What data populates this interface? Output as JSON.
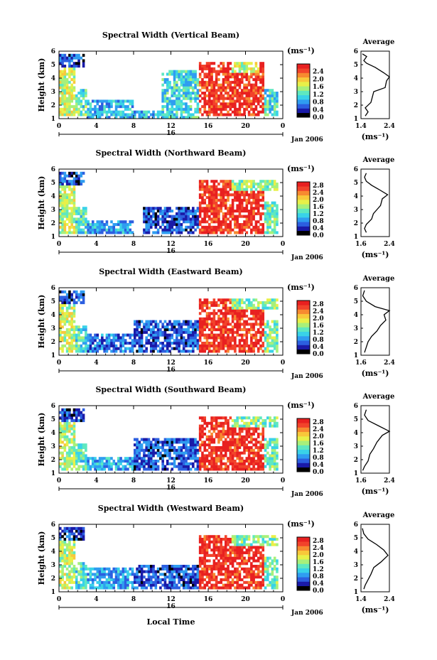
{
  "colors": {
    "scale": [
      "#000000",
      "#1a1aa8",
      "#2c5fe0",
      "#2f9df0",
      "#39d2e8",
      "#5ee8c0",
      "#a8f07a",
      "#e8f048",
      "#f8c83a",
      "#f78a30",
      "#f2432b",
      "#e82020"
    ]
  },
  "date_label": "Jan 2006",
  "day_label": "16",
  "xlabel": "Local Time",
  "chart_data": [
    {
      "type": "heatmap",
      "title": "Spectral Width (Vertical Beam)",
      "ylabel": "Height (km)",
      "x_ticks": [
        "0",
        "4",
        "8",
        "12",
        "16",
        "20",
        "0"
      ],
      "xlim": [
        0,
        24
      ],
      "y_ticks": [
        "1",
        "2",
        "3",
        "4",
        "5",
        "6"
      ],
      "ylim": [
        1,
        6
      ],
      "colorbar": {
        "unit": "(ms⁻¹)",
        "ticks": [
          "0.0",
          "0.4",
          "0.8",
          "1.2",
          "1.6",
          "2.0",
          "2.4"
        ],
        "range": [
          0,
          2.8
        ]
      },
      "regions": [
        {
          "x": [
            0,
            2.7
          ],
          "y": [
            4.8,
            5.7
          ],
          "v": 0.5
        },
        {
          "x": [
            0,
            1.8
          ],
          "y": [
            1.2,
            4.8
          ],
          "v": 1.7
        },
        {
          "x": [
            1.8,
            3
          ],
          "y": [
            1.2,
            3.2
          ],
          "v": 1.3
        },
        {
          "x": [
            3,
            8
          ],
          "y": [
            1.1,
            2.4
          ],
          "v": 0.9
        },
        {
          "x": [
            8,
            11
          ],
          "y": [
            1.1,
            1.7
          ],
          "v": 1.0
        },
        {
          "x": [
            11,
            15
          ],
          "y": [
            1.1,
            4.5
          ],
          "v": 1.1
        },
        {
          "x": [
            15,
            22
          ],
          "y": [
            1.2,
            5.2
          ],
          "v": 2.6
        },
        {
          "x": [
            18.5,
            21.5
          ],
          "y": [
            4.5,
            5.2
          ],
          "v": 1.6
        },
        {
          "x": [
            22,
            23.5
          ],
          "y": [
            1.2,
            3.2
          ],
          "v": 1.2
        }
      ],
      "profile": {
        "title": "Average",
        "xlabel": "(ms⁻¹)",
        "x_ticks": [
          "1.4",
          "2.4"
        ],
        "xlim": [
          1.4,
          2.4
        ],
        "y_ticks": [
          "1",
          "2",
          "3",
          "4",
          "5",
          "6"
        ],
        "ylim": [
          1,
          6
        ],
        "points": [
          [
            1.55,
            1.2
          ],
          [
            1.65,
            1.5
          ],
          [
            1.55,
            1.8
          ],
          [
            1.75,
            2.2
          ],
          [
            1.8,
            2.6
          ],
          [
            1.85,
            3.0
          ],
          [
            2.25,
            3.3
          ],
          [
            2.3,
            3.8
          ],
          [
            2.4,
            4.1
          ],
          [
            2.2,
            4.4
          ],
          [
            1.9,
            4.8
          ],
          [
            1.6,
            5.1
          ],
          [
            1.5,
            5.3
          ],
          [
            1.6,
            5.6
          ],
          [
            1.45,
            5.8
          ]
        ]
      }
    },
    {
      "type": "heatmap",
      "title": "Spectral Width (Northward Beam)",
      "ylabel": "Height (km)",
      "x_ticks": [
        "0",
        "4",
        "8",
        "12",
        "16",
        "20",
        "0"
      ],
      "xlim": [
        0,
        24
      ],
      "y_ticks": [
        "1",
        "2",
        "3",
        "4",
        "5",
        "6"
      ],
      "ylim": [
        1,
        6
      ],
      "colorbar": {
        "unit": "(ms⁻¹)",
        "ticks": [
          "0.0",
          "0.4",
          "0.8",
          "1.2",
          "1.6",
          "2.0",
          "2.4",
          "2.8"
        ],
        "range": [
          0,
          3.0
        ]
      },
      "regions": [
        {
          "x": [
            0,
            2.7
          ],
          "y": [
            4.8,
            5.7
          ],
          "v": 0.5
        },
        {
          "x": [
            0,
            1.8
          ],
          "y": [
            1.2,
            4.8
          ],
          "v": 1.7
        },
        {
          "x": [
            1.8,
            3
          ],
          "y": [
            1.2,
            3.2
          ],
          "v": 1.3
        },
        {
          "x": [
            3,
            8
          ],
          "y": [
            1.2,
            2.2
          ],
          "v": 0.9
        },
        {
          "x": [
            9,
            15
          ],
          "y": [
            1.2,
            3.2
          ],
          "v": 0.6
        },
        {
          "x": [
            15,
            22
          ],
          "y": [
            1.2,
            5.2
          ],
          "v": 2.8
        },
        {
          "x": [
            18.5,
            23.5
          ],
          "y": [
            4.5,
            5.2
          ],
          "v": 1.6
        },
        {
          "x": [
            22,
            23.5
          ],
          "y": [
            1.2,
            3.5
          ],
          "v": 1.4
        }
      ],
      "profile": {
        "title": "Average",
        "xlabel": "(ms⁻¹)",
        "x_ticks": [
          "1.6",
          "2.4"
        ],
        "xlim": [
          1.6,
          2.4
        ],
        "y_ticks": [
          "1",
          "2",
          "3",
          "4",
          "5",
          "6"
        ],
        "ylim": [
          1,
          6
        ],
        "points": [
          [
            1.75,
            1.3
          ],
          [
            1.7,
            1.6
          ],
          [
            1.75,
            1.9
          ],
          [
            1.9,
            2.3
          ],
          [
            1.95,
            2.7
          ],
          [
            2.05,
            3.0
          ],
          [
            2.15,
            3.3
          ],
          [
            2.2,
            3.8
          ],
          [
            2.35,
            4.1
          ],
          [
            2.1,
            4.5
          ],
          [
            1.9,
            4.8
          ],
          [
            1.75,
            5.1
          ],
          [
            1.7,
            5.4
          ],
          [
            1.75,
            5.7
          ]
        ]
      }
    },
    {
      "type": "heatmap",
      "title": "Spectral Width (Eastward Beam)",
      "ylabel": "Height (km)",
      "x_ticks": [
        "0",
        "4",
        "8",
        "12",
        "16",
        "20",
        "0"
      ],
      "xlim": [
        0,
        24
      ],
      "y_ticks": [
        "1",
        "2",
        "3",
        "4",
        "5",
        "6"
      ],
      "ylim": [
        1,
        6
      ],
      "colorbar": {
        "unit": "(ms⁻¹)",
        "ticks": [
          "0.0",
          "0.4",
          "0.8",
          "1.2",
          "1.6",
          "2.0",
          "2.4",
          "2.8"
        ],
        "range": [
          0,
          3.0
        ]
      },
      "regions": [
        {
          "x": [
            0,
            2.7
          ],
          "y": [
            4.8,
            5.7
          ],
          "v": 0.5
        },
        {
          "x": [
            0,
            1.8
          ],
          "y": [
            1.2,
            4.8
          ],
          "v": 1.8
        },
        {
          "x": [
            1.8,
            3
          ],
          "y": [
            1.2,
            3.2
          ],
          "v": 1.3
        },
        {
          "x": [
            3,
            8
          ],
          "y": [
            1.2,
            2.6
          ],
          "v": 0.7
        },
        {
          "x": [
            8,
            15
          ],
          "y": [
            1.2,
            3.5
          ],
          "v": 0.6
        },
        {
          "x": [
            15,
            22
          ],
          "y": [
            1.2,
            5.2
          ],
          "v": 2.8
        },
        {
          "x": [
            18.5,
            23.5
          ],
          "y": [
            4.5,
            5.2
          ],
          "v": 1.5
        },
        {
          "x": [
            22,
            23.5
          ],
          "y": [
            1.2,
            3.5
          ],
          "v": 1.5
        }
      ],
      "profile": {
        "title": "Average",
        "xlabel": "(ms⁻¹)",
        "x_ticks": [
          "1.6",
          "2.4"
        ],
        "xlim": [
          1.6,
          2.4
        ],
        "y_ticks": [
          "1",
          "2",
          "3",
          "4",
          "5",
          "6"
        ],
        "ylim": [
          1,
          6
        ],
        "points": [
          [
            1.7,
            1.2
          ],
          [
            1.75,
            1.6
          ],
          [
            1.8,
            2.0
          ],
          [
            1.9,
            2.4
          ],
          [
            2.05,
            2.8
          ],
          [
            2.15,
            3.2
          ],
          [
            2.3,
            3.6
          ],
          [
            2.25,
            4.0
          ],
          [
            2.4,
            4.3
          ],
          [
            2.0,
            4.6
          ],
          [
            1.75,
            5.0
          ],
          [
            1.65,
            5.4
          ],
          [
            1.7,
            5.8
          ]
        ]
      }
    },
    {
      "type": "heatmap",
      "title": "Spectral Width (Southward Beam)",
      "ylabel": "Height (km)",
      "x_ticks": [
        "0",
        "4",
        "8",
        "12",
        "16",
        "20",
        "0"
      ],
      "xlim": [
        0,
        24
      ],
      "y_ticks": [
        "1",
        "2",
        "3",
        "4",
        "5",
        "6"
      ],
      "ylim": [
        1,
        6
      ],
      "colorbar": {
        "unit": "(ms⁻¹)",
        "ticks": [
          "0.0",
          "0.4",
          "0.8",
          "1.2",
          "1.6",
          "2.0",
          "2.4",
          "2.8"
        ],
        "range": [
          0,
          3.0
        ]
      },
      "regions": [
        {
          "x": [
            0,
            2.7
          ],
          "y": [
            4.8,
            5.7
          ],
          "v": 0.5
        },
        {
          "x": [
            0,
            1.8
          ],
          "y": [
            1.2,
            4.8
          ],
          "v": 1.7
        },
        {
          "x": [
            1.8,
            3
          ],
          "y": [
            1.2,
            3.2
          ],
          "v": 1.3
        },
        {
          "x": [
            3,
            8
          ],
          "y": [
            1.2,
            2.2
          ],
          "v": 0.9
        },
        {
          "x": [
            8,
            15
          ],
          "y": [
            1.2,
            3.6
          ],
          "v": 0.6
        },
        {
          "x": [
            15,
            22
          ],
          "y": [
            1.2,
            5.2
          ],
          "v": 2.8
        },
        {
          "x": [
            18.5,
            23.5
          ],
          "y": [
            4.5,
            5.2
          ],
          "v": 1.5
        },
        {
          "x": [
            22,
            23.5
          ],
          "y": [
            1.2,
            3.5
          ],
          "v": 1.4
        }
      ],
      "profile": {
        "title": "Average",
        "xlabel": "(ms⁻¹)",
        "x_ticks": [
          "1.6",
          "2.4"
        ],
        "xlim": [
          1.6,
          2.4
        ],
        "y_ticks": [
          "1",
          "2",
          "3",
          "4",
          "5",
          "6"
        ],
        "ylim": [
          1,
          6
        ],
        "points": [
          [
            1.65,
            1.2
          ],
          [
            1.7,
            1.5
          ],
          [
            1.8,
            1.9
          ],
          [
            1.85,
            2.4
          ],
          [
            1.95,
            2.8
          ],
          [
            2.05,
            3.3
          ],
          [
            2.2,
            3.8
          ],
          [
            2.4,
            4.1
          ],
          [
            2.1,
            4.5
          ],
          [
            1.8,
            4.9
          ],
          [
            1.7,
            5.3
          ],
          [
            1.75,
            5.7
          ]
        ]
      }
    },
    {
      "type": "heatmap",
      "title": "Spectral Width (Westward Beam)",
      "ylabel": "Height (km)",
      "x_ticks": [
        "0",
        "4",
        "8",
        "12",
        "16",
        "20",
        "0"
      ],
      "xlim": [
        0,
        24
      ],
      "y_ticks": [
        "1",
        "2",
        "3",
        "4",
        "5",
        "6"
      ],
      "ylim": [
        1,
        6
      ],
      "colorbar": {
        "unit": "(ms⁻¹)",
        "ticks": [
          "0.0",
          "0.4",
          "0.8",
          "1.2",
          "1.6",
          "2.0",
          "2.4",
          "2.8"
        ],
        "range": [
          0,
          3.0
        ]
      },
      "regions": [
        {
          "x": [
            0,
            2.7
          ],
          "y": [
            4.8,
            5.7
          ],
          "v": 0.5
        },
        {
          "x": [
            0,
            1.8
          ],
          "y": [
            1.2,
            4.8
          ],
          "v": 1.7
        },
        {
          "x": [
            1.8,
            3
          ],
          "y": [
            1.2,
            3.2
          ],
          "v": 1.3
        },
        {
          "x": [
            3,
            8
          ],
          "y": [
            1.2,
            2.8
          ],
          "v": 0.9
        },
        {
          "x": [
            8,
            15
          ],
          "y": [
            1.2,
            3.0
          ],
          "v": 0.6
        },
        {
          "x": [
            15,
            22
          ],
          "y": [
            1.2,
            5.2
          ],
          "v": 2.8
        },
        {
          "x": [
            18.5,
            23.5
          ],
          "y": [
            4.5,
            5.2
          ],
          "v": 1.5
        },
        {
          "x": [
            22,
            23.5
          ],
          "y": [
            1.2,
            3.5
          ],
          "v": 1.4
        }
      ],
      "profile": {
        "title": "Average",
        "xlabel": "(ms⁻¹)",
        "x_ticks": [
          "1.4",
          "2.4"
        ],
        "xlim": [
          1.4,
          2.4
        ],
        "y_ticks": [
          "1",
          "2",
          "3",
          "4",
          "5",
          "6"
        ],
        "ylim": [
          1,
          6
        ],
        "points": [
          [
            1.5,
            1.2
          ],
          [
            1.55,
            1.5
          ],
          [
            1.65,
            1.9
          ],
          [
            1.75,
            2.3
          ],
          [
            1.85,
            2.8
          ],
          [
            2.1,
            3.2
          ],
          [
            2.35,
            3.7
          ],
          [
            2.2,
            4.1
          ],
          [
            1.95,
            4.5
          ],
          [
            1.65,
            4.9
          ],
          [
            1.5,
            5.3
          ],
          [
            1.45,
            5.7
          ]
        ]
      }
    }
  ]
}
